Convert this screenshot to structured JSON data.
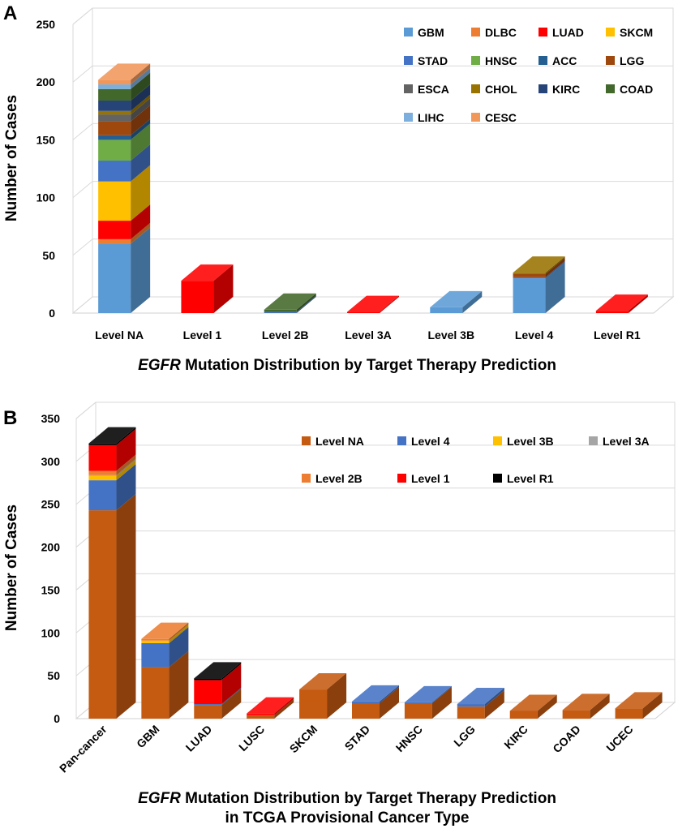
{
  "chart_data": [
    {
      "panel_label": "A",
      "type": "bar",
      "stacked": true,
      "three_d": true,
      "title": "",
      "xlabel_italic": "EGFR",
      "xlabel_rest": " Mutation Distribution by Target Therapy Prediction",
      "xlabel_line2": "",
      "ylabel": "Number of Cases",
      "ylim": [
        0,
        250
      ],
      "yticks": [
        0,
        50,
        100,
        150,
        200,
        250
      ],
      "categories": [
        "Level NA",
        "Level 1",
        "Level 2B",
        "Level 3A",
        "Level 3B",
        "Level 4",
        "Level R1"
      ],
      "legend_position": "top-right",
      "series": [
        {
          "name": "GBM",
          "color": "#5B9BD5",
          "values": [
            60,
            0,
            0,
            0,
            5,
            30,
            0
          ]
        },
        {
          "name": "DLBC",
          "color": "#ED7D31",
          "values": [
            4,
            0,
            0,
            0,
            0,
            0,
            0
          ]
        },
        {
          "name": "LUAD",
          "color": "#FF0000",
          "values": [
            16,
            28,
            0,
            1,
            0,
            0,
            2
          ]
        },
        {
          "name": "SKCM",
          "color": "#FFC000",
          "values": [
            34,
            0,
            0,
            0,
            0,
            0,
            0
          ]
        },
        {
          "name": "STAD",
          "color": "#4472C4",
          "values": [
            18,
            0,
            1,
            0,
            0,
            1,
            0
          ]
        },
        {
          "name": "HNSC",
          "color": "#70AD47",
          "values": [
            18,
            0,
            0,
            0,
            0,
            0,
            0
          ]
        },
        {
          "name": "ACC",
          "color": "#255E91",
          "values": [
            4,
            0,
            0,
            0,
            0,
            0,
            0
          ]
        },
        {
          "name": "LGG",
          "color": "#9E480E",
          "values": [
            12,
            0,
            0,
            0,
            0,
            3,
            0
          ]
        },
        {
          "name": "ESCA",
          "color": "#636363",
          "values": [
            6,
            0,
            0,
            0,
            0,
            0,
            0
          ]
        },
        {
          "name": "CHOL",
          "color": "#997300",
          "values": [
            3,
            0,
            0,
            0,
            0,
            1,
            0
          ]
        },
        {
          "name": "KIRC",
          "color": "#264478",
          "values": [
            9,
            0,
            0,
            0,
            0,
            0,
            0
          ]
        },
        {
          "name": "COAD",
          "color": "#43682B",
          "values": [
            10,
            0,
            2,
            0,
            0,
            0,
            0
          ]
        },
        {
          "name": "LIHC",
          "color": "#7CAFDD",
          "values": [
            4,
            0,
            0,
            0,
            0,
            0,
            0
          ]
        },
        {
          "name": "CESC",
          "color": "#F1975A",
          "values": [
            4,
            0,
            0,
            0,
            0,
            0,
            0
          ]
        }
      ]
    },
    {
      "panel_label": "B",
      "type": "bar",
      "stacked": true,
      "three_d": true,
      "title": "",
      "xlabel_italic": "EGFR",
      "xlabel_rest": " Mutation Distribution by Target Therapy Prediction",
      "xlabel_line2": "in TCGA Provisional Cancer Type",
      "ylabel": "Number of Cases",
      "ylim": [
        0,
        350
      ],
      "yticks": [
        0,
        50,
        100,
        150,
        200,
        250,
        300,
        350
      ],
      "categories": [
        "Pan-cancer",
        "GBM",
        "LUAD",
        "LUSC",
        "SKCM",
        "STAD",
        "HNSC",
        "LGG",
        "KIRC",
        "COAD",
        "UCEC"
      ],
      "legend_position": "top-right",
      "series": [
        {
          "name": "Level NA",
          "color": "#C55A11",
          "values": [
            243,
            60,
            16,
            4,
            34,
            18,
            18,
            14,
            9,
            10,
            12
          ]
        },
        {
          "name": "Level 4",
          "color": "#4472C4",
          "values": [
            35,
            28,
            1,
            0,
            0,
            2,
            1,
            3,
            0,
            0,
            0
          ]
        },
        {
          "name": "Level 3B",
          "color": "#FFC000",
          "values": [
            5,
            3,
            0,
            0,
            0,
            0,
            0,
            0,
            0,
            0,
            0
          ]
        },
        {
          "name": "Level 3A",
          "color": "#A5A5A5",
          "values": [
            1,
            0,
            0,
            0,
            0,
            0,
            0,
            0,
            0,
            0,
            0
          ]
        },
        {
          "name": "Level 2B",
          "color": "#ED7D31",
          "values": [
            5,
            2,
            0,
            0,
            0,
            0,
            0,
            0,
            0,
            0,
            0
          ]
        },
        {
          "name": "Level 1",
          "color": "#FF0000",
          "values": [
            30,
            0,
            28,
            2,
            0,
            0,
            0,
            0,
            0,
            0,
            0
          ]
        },
        {
          "name": "Level R1",
          "color": "#000000",
          "values": [
            2,
            0,
            2,
            0,
            0,
            0,
            0,
            0,
            0,
            0,
            0
          ]
        }
      ]
    }
  ]
}
